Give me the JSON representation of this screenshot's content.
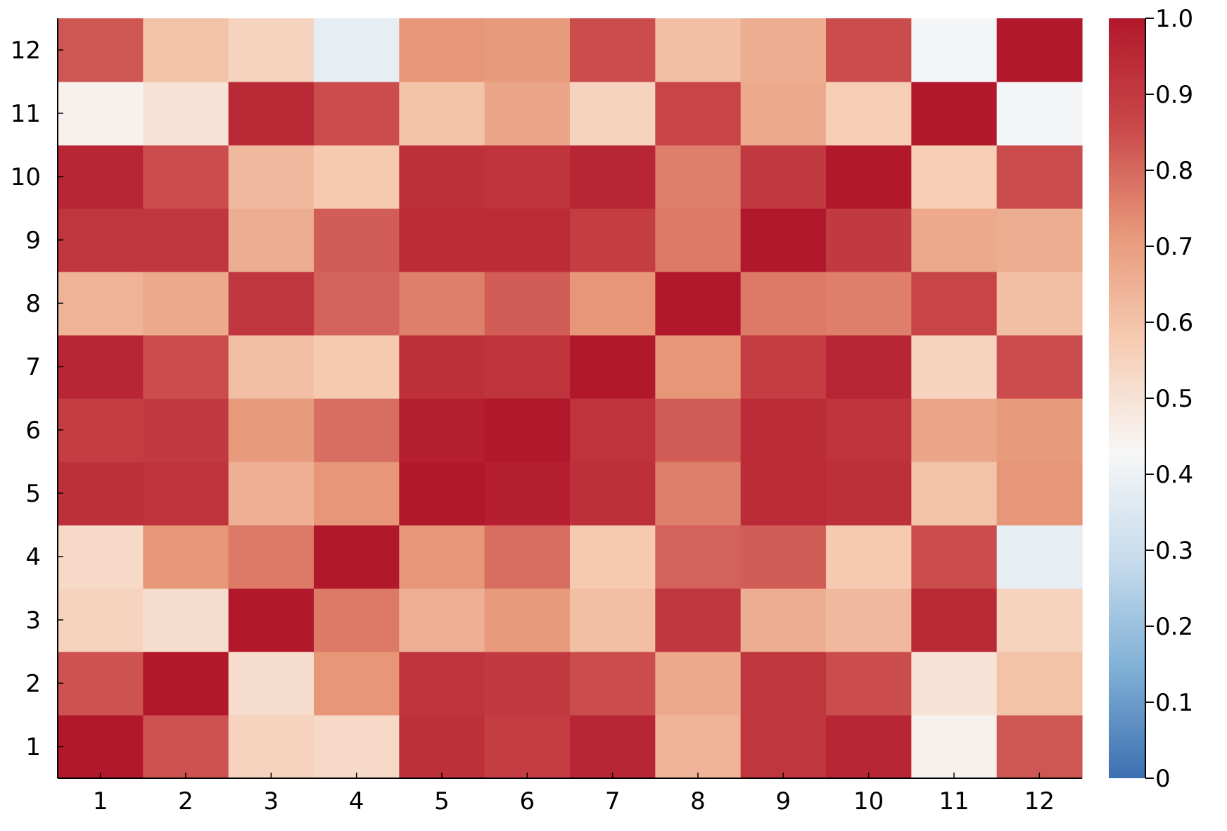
{
  "chart_data": {
    "type": "heatmap",
    "title": "",
    "xlabel": "",
    "ylabel": "",
    "x_categories": [
      "1",
      "2",
      "3",
      "4",
      "5",
      "6",
      "7",
      "8",
      "9",
      "10",
      "11",
      "12"
    ],
    "y_categories": [
      "1",
      "2",
      "3",
      "4",
      "5",
      "6",
      "7",
      "8",
      "9",
      "10",
      "11",
      "12"
    ],
    "values": [
      [
        1.0,
        0.84,
        0.55,
        0.53,
        0.93,
        0.89,
        0.96,
        0.64,
        0.91,
        0.96,
        0.45,
        0.83
      ],
      [
        0.84,
        1.0,
        0.52,
        0.72,
        0.92,
        0.9,
        0.85,
        0.67,
        0.91,
        0.85,
        0.5,
        0.6
      ],
      [
        0.55,
        0.52,
        1.0,
        0.77,
        0.65,
        0.71,
        0.61,
        0.91,
        0.66,
        0.63,
        0.95,
        0.55
      ],
      [
        0.53,
        0.72,
        0.77,
        1.0,
        0.72,
        0.79,
        0.58,
        0.81,
        0.82,
        0.58,
        0.85,
        0.38
      ],
      [
        0.93,
        0.92,
        0.65,
        0.72,
        1.0,
        0.98,
        0.93,
        0.76,
        0.94,
        0.93,
        0.6,
        0.72
      ],
      [
        0.89,
        0.9,
        0.71,
        0.79,
        0.98,
        1.0,
        0.92,
        0.82,
        0.94,
        0.92,
        0.68,
        0.71
      ],
      [
        0.96,
        0.85,
        0.61,
        0.58,
        0.93,
        0.92,
        1.0,
        0.72,
        0.89,
        0.96,
        0.55,
        0.85
      ],
      [
        0.64,
        0.67,
        0.91,
        0.81,
        0.76,
        0.82,
        0.72,
        1.0,
        0.77,
        0.76,
        0.87,
        0.61
      ],
      [
        0.91,
        0.91,
        0.66,
        0.82,
        0.94,
        0.94,
        0.89,
        0.77,
        1.0,
        0.9,
        0.67,
        0.66
      ],
      [
        0.96,
        0.85,
        0.63,
        0.58,
        0.93,
        0.92,
        0.96,
        0.76,
        0.9,
        1.0,
        0.57,
        0.85
      ],
      [
        0.45,
        0.5,
        0.95,
        0.85,
        0.6,
        0.68,
        0.55,
        0.87,
        0.67,
        0.57,
        1.0,
        0.42
      ],
      [
        0.83,
        0.6,
        0.55,
        0.38,
        0.72,
        0.71,
        0.85,
        0.61,
        0.66,
        0.85,
        0.42,
        1.0
      ]
    ],
    "value_order": "values[row][col], row index 0 corresponds to y category '1'",
    "colorbar": {
      "min": 0,
      "max": 1.0,
      "ticks": [
        "0",
        "0.1",
        "0.2",
        "0.3",
        "0.4",
        "0.5",
        "0.6",
        "0.7",
        "0.8",
        "0.9",
        "1.0"
      ],
      "colormap": "RdBu reversed (blue low, white mid, red high)",
      "stops": [
        "#3c6fb0",
        "#7fb0d6",
        "#c6dbec",
        "#f7f7f7",
        "#f6cdb4",
        "#e8997a",
        "#c9484a",
        "#b2182b"
      ]
    },
    "grid": false,
    "legend": "colorbar-right"
  }
}
